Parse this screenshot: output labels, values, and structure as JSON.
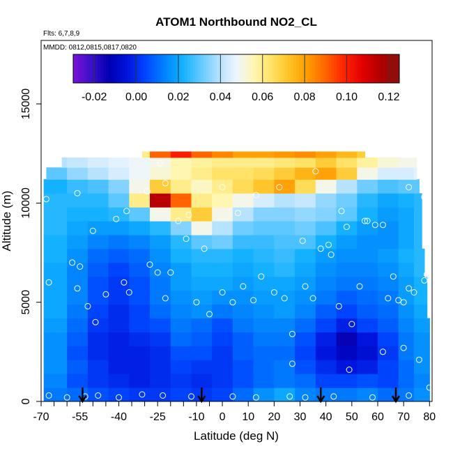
{
  "chart_data": {
    "type": "heatmap",
    "title": "ATOM1 Northbound NO2_CL",
    "subtitle_lines": [
      "Flts: 6,7,8,9",
      "MMDD: 0812,0815,0817,0820"
    ],
    "xlabel": "Latitude (deg N)",
    "ylabel": "Altitude (m)",
    "xlim": [
      -70,
      81
    ],
    "ylim": [
      0,
      18200
    ],
    "x_ticks": [
      -70,
      -55,
      -40,
      -25,
      -10,
      0,
      10,
      20,
      30,
      40,
      50,
      60,
      70,
      80
    ],
    "x_tick_labels": [
      "-70",
      "-55",
      "-40",
      "-25",
      "-10",
      "0",
      "10",
      "20",
      "30",
      "40",
      "50",
      "60",
      "70",
      "80"
    ],
    "x_minor_ticks": [
      -65,
      -60,
      -50,
      -45,
      -35,
      -30,
      -20,
      -15,
      -5
    ],
    "y_ticks": [
      0,
      5000,
      10000,
      15000
    ],
    "y_tick_labels": [
      "0",
      "5000",
      "10000",
      "15000"
    ],
    "colorbar": {
      "range": [
        -0.03,
        0.125
      ],
      "ticks": [
        -0.02,
        0.0,
        0.02,
        0.04,
        0.06,
        0.08,
        0.1,
        0.12
      ],
      "tick_labels": [
        "-0.02",
        "0.00",
        "0.02",
        "0.04",
        "0.06",
        "0.08",
        "0.10",
        "0.12"
      ],
      "colors": [
        "#7a12d6",
        "#3a10c8",
        "#0000b4",
        "#0014dc",
        "#0046ff",
        "#0080ff",
        "#10b0ff",
        "#60c8ff",
        "#b0e0ff",
        "#eef6ff",
        "#fff7b0",
        "#ffe060",
        "#ffc020",
        "#ff9800",
        "#ff6000",
        "#ff2000",
        "#e00000",
        "#b00000",
        "#8a1010"
      ]
    },
    "altitude_band_edges_m": [
      0,
      700,
      1400,
      2100,
      2800,
      3500,
      4200,
      4900,
      5600,
      6300,
      7000,
      7700,
      8400,
      9100,
      9800,
      10500,
      11200,
      11800,
      12300,
      12600
    ],
    "latitude_bin_edges": [
      -68,
      -60,
      -52,
      -44,
      -36,
      -28,
      -20,
      -12,
      -4,
      4,
      12,
      20,
      28,
      36,
      44,
      52,
      60,
      68,
      74,
      80
    ],
    "band_lat_extents": [
      [
        -69,
        80
      ],
      [
        -69,
        80
      ],
      [
        -69,
        80
      ],
      [
        -69,
        80
      ],
      [
        -69,
        80
      ],
      [
        -69,
        80
      ],
      [
        -69,
        79
      ],
      [
        -69,
        79
      ],
      [
        -69,
        79
      ],
      [
        -69,
        78
      ],
      [
        -69,
        78
      ],
      [
        -69,
        77
      ],
      [
        -69,
        77
      ],
      [
        -69,
        77
      ],
      [
        -69,
        77
      ],
      [
        -69,
        76
      ],
      [
        -68,
        75
      ],
      [
        -62,
        75
      ],
      [
        -31,
        55
      ]
    ],
    "values": [
      [
        0.012,
        0.01,
        0.006,
        0.004,
        0.002,
        0.002,
        0.004,
        0.002,
        0.004,
        0.01,
        0.016,
        0.02,
        0.014,
        0.012,
        0.012,
        0.014,
        0.01,
        0.012,
        0.016
      ],
      [
        0.014,
        0.006,
        0.002,
        0.0,
        -0.002,
        0.0,
        0.002,
        0.0,
        0.002,
        0.006,
        0.01,
        0.012,
        0.01,
        0.004,
        0.004,
        0.006,
        0.004,
        0.01,
        0.014
      ],
      [
        0.016,
        0.008,
        0.002,
        -0.002,
        -0.002,
        0.0,
        0.004,
        0.002,
        0.002,
        0.006,
        0.01,
        0.012,
        0.006,
        0.0,
        -0.004,
        -0.002,
        0.004,
        0.01,
        0.016
      ],
      [
        0.016,
        0.006,
        0.0,
        -0.002,
        -0.002,
        0.0,
        0.006,
        0.006,
        0.002,
        0.008,
        0.01,
        0.01,
        0.004,
        -0.004,
        -0.01,
        -0.006,
        0.002,
        0.012,
        0.016
      ],
      [
        0.016,
        0.008,
        0.0,
        -0.002,
        0.0,
        0.002,
        0.01,
        0.008,
        0.004,
        0.008,
        0.012,
        0.012,
        0.006,
        -0.002,
        -0.014,
        -0.004,
        0.004,
        0.012,
        0.016
      ],
      [
        0.018,
        0.01,
        0.002,
        0.0,
        0.004,
        0.006,
        0.012,
        0.01,
        0.006,
        0.012,
        0.014,
        0.014,
        0.01,
        0.004,
        -0.002,
        0.004,
        0.008,
        0.014,
        0.018
      ],
      [
        0.02,
        0.012,
        0.004,
        0.0,
        0.004,
        0.01,
        0.014,
        0.016,
        0.012,
        0.014,
        0.016,
        0.018,
        0.014,
        0.008,
        0.004,
        0.008,
        0.01,
        0.016,
        0.02
      ],
      [
        0.02,
        0.014,
        0.006,
        0.002,
        0.006,
        0.012,
        0.016,
        0.018,
        0.016,
        0.016,
        0.018,
        0.018,
        0.016,
        0.012,
        0.008,
        0.01,
        0.012,
        0.018,
        0.022
      ],
      [
        0.02,
        0.014,
        0.006,
        0.002,
        0.006,
        0.012,
        0.018,
        0.02,
        0.02,
        0.018,
        0.02,
        0.02,
        0.018,
        0.014,
        0.012,
        0.012,
        0.014,
        0.018,
        0.022
      ],
      [
        0.02,
        0.014,
        0.008,
        0.004,
        0.008,
        0.014,
        0.018,
        0.022,
        0.022,
        0.02,
        0.022,
        0.024,
        0.02,
        0.016,
        0.014,
        0.014,
        0.016,
        0.02,
        0.024
      ],
      [
        0.022,
        0.016,
        0.01,
        0.008,
        0.01,
        0.016,
        0.022,
        0.024,
        0.024,
        0.022,
        0.024,
        0.026,
        0.022,
        0.018,
        0.016,
        0.016,
        0.018,
        0.022,
        0.024
      ],
      [
        0.022,
        0.018,
        0.014,
        0.012,
        0.014,
        0.018,
        0.024,
        0.03,
        0.032,
        0.026,
        0.026,
        0.028,
        0.028,
        0.022,
        0.018,
        0.016,
        0.016,
        0.02,
        0.024
      ],
      [
        0.024,
        0.02,
        0.018,
        0.018,
        0.02,
        0.024,
        0.034,
        0.05,
        0.04,
        0.032,
        0.03,
        0.03,
        0.032,
        0.028,
        0.022,
        0.018,
        0.016,
        0.02,
        0.024
      ],
      [
        0.024,
        0.022,
        0.022,
        0.024,
        0.03,
        0.05,
        0.06,
        0.07,
        0.05,
        0.04,
        0.034,
        0.034,
        0.036,
        0.034,
        0.03,
        0.022,
        0.018,
        0.02,
        0.024
      ],
      [
        0.024,
        0.024,
        0.024,
        0.03,
        0.06,
        0.115,
        0.09,
        0.06,
        0.056,
        0.05,
        0.044,
        0.04,
        0.042,
        0.036,
        0.032,
        0.024,
        0.02,
        0.022,
        0.024
      ],
      [
        0.022,
        0.026,
        0.028,
        0.034,
        0.05,
        0.07,
        0.06,
        0.054,
        0.06,
        0.066,
        0.072,
        0.08,
        0.066,
        0.05,
        0.04,
        0.032,
        0.028,
        0.03,
        0.03
      ],
      [
        0.03,
        0.036,
        0.04,
        0.044,
        0.048,
        0.052,
        0.056,
        0.06,
        0.064,
        0.064,
        0.066,
        0.07,
        0.076,
        0.08,
        0.07,
        0.05,
        0.044,
        0.044,
        0.046
      ],
      [
        0.04,
        0.042,
        0.044,
        0.046,
        0.048,
        0.05,
        0.056,
        0.058,
        0.06,
        0.06,
        0.06,
        0.062,
        0.064,
        0.07,
        0.064,
        0.058,
        0.052,
        0.05,
        0.05
      ],
      [
        0.06,
        0.06,
        0.06,
        0.06,
        0.06,
        0.09,
        0.1,
        0.09,
        0.085,
        0.08,
        0.08,
        0.082,
        0.084,
        0.08,
        0.075,
        0.07,
        0.07,
        0.06,
        0.06
      ]
    ],
    "sample_points": [
      {
        "lat": -67,
        "alt": 300
      },
      {
        "lat": -60,
        "alt": 200
      },
      {
        "lat": -53,
        "alt": 250
      },
      {
        "lat": -48,
        "alt": 300
      },
      {
        "lat": -40,
        "alt": 200
      },
      {
        "lat": -31,
        "alt": 350
      },
      {
        "lat": -23,
        "alt": 300
      },
      {
        "lat": -12,
        "alt": 250
      },
      {
        "lat": 4,
        "alt": 250
      },
      {
        "lat": 13,
        "alt": 200
      },
      {
        "lat": 26,
        "alt": 250
      },
      {
        "lat": 32,
        "alt": 200
      },
      {
        "lat": 43,
        "alt": 250
      },
      {
        "lat": 58,
        "alt": 200
      },
      {
        "lat": 72,
        "alt": 300
      },
      {
        "lat": 80,
        "alt": 700
      },
      {
        "lat": -67,
        "alt": 6000
      },
      {
        "lat": -58,
        "alt": 7000
      },
      {
        "lat": -56,
        "alt": 5700
      },
      {
        "lat": -55,
        "alt": 6800
      },
      {
        "lat": -52,
        "alt": 4800
      },
      {
        "lat": -49,
        "alt": 4000
      },
      {
        "lat": -45,
        "alt": 5400
      },
      {
        "lat": -38,
        "alt": 6000
      },
      {
        "lat": -36,
        "alt": 5500
      },
      {
        "lat": -28,
        "alt": 6900
      },
      {
        "lat": -25,
        "alt": 6500
      },
      {
        "lat": -22,
        "alt": 5200
      },
      {
        "lat": -20,
        "alt": 6500
      },
      {
        "lat": -17,
        "alt": 9100
      },
      {
        "lat": -14,
        "alt": 8200
      },
      {
        "lat": -10,
        "alt": 5000
      },
      {
        "lat": -5,
        "alt": 4400
      },
      {
        "lat": 0,
        "alt": 5500
      },
      {
        "lat": 4,
        "alt": 5000
      },
      {
        "lat": 8,
        "alt": 5800
      },
      {
        "lat": 12,
        "alt": 5100
      },
      {
        "lat": 15,
        "alt": 6300
      },
      {
        "lat": 20,
        "alt": 5500
      },
      {
        "lat": 24,
        "alt": 5200
      },
      {
        "lat": 27,
        "alt": 3400
      },
      {
        "lat": 32,
        "alt": 5800
      },
      {
        "lat": 35,
        "alt": 5200
      },
      {
        "lat": 38,
        "alt": 7700
      },
      {
        "lat": 42,
        "alt": 7400
      },
      {
        "lat": 45,
        "alt": 4800
      },
      {
        "lat": 48,
        "alt": 8800
      },
      {
        "lat": 50,
        "alt": 3900
      },
      {
        "lat": 53,
        "alt": 5800
      },
      {
        "lat": 55,
        "alt": 9100
      },
      {
        "lat": 62,
        "alt": 8900
      },
      {
        "lat": 64,
        "alt": 5200
      },
      {
        "lat": 66,
        "alt": 6300
      },
      {
        "lat": 68,
        "alt": 5100
      },
      {
        "lat": 70,
        "alt": 2700
      },
      {
        "lat": 72,
        "alt": 5700
      },
      {
        "lat": 74,
        "alt": 5500
      },
      {
        "lat": 76,
        "alt": 2100
      },
      {
        "lat": 78,
        "alt": 6100
      },
      {
        "lat": 79,
        "alt": 6400
      },
      {
        "lat": -68,
        "alt": 10200
      },
      {
        "lat": -56,
        "alt": 10500
      },
      {
        "lat": -50,
        "alt": 8600
      },
      {
        "lat": -41,
        "alt": 9200
      },
      {
        "lat": -37,
        "alt": 9600
      },
      {
        "lat": -29,
        "alt": 10600
      },
      {
        "lat": -22,
        "alt": 11000
      },
      {
        "lat": -13,
        "alt": 9400
      },
      {
        "lat": -7,
        "alt": 7700
      },
      {
        "lat": 0,
        "alt": 10800
      },
      {
        "lat": 6,
        "alt": 9500
      },
      {
        "lat": 13,
        "alt": 10400
      },
      {
        "lat": 22,
        "alt": 10800
      },
      {
        "lat": 31,
        "alt": 8100
      },
      {
        "lat": 36,
        "alt": 11600
      },
      {
        "lat": 41,
        "alt": 7900
      },
      {
        "lat": 46,
        "alt": 9600
      },
      {
        "lat": 56,
        "alt": 9100
      },
      {
        "lat": 59,
        "alt": 8900
      },
      {
        "lat": 72,
        "alt": 10800
      },
      {
        "lat": 78,
        "alt": 10300
      },
      {
        "lat": -24,
        "alt": 12000
      },
      {
        "lat": 70,
        "alt": 5000
      },
      {
        "lat": 62,
        "alt": 2500
      },
      {
        "lat": 49,
        "alt": 1600
      },
      {
        "lat": 27,
        "alt": 1900
      }
    ],
    "arrow_markers_lat": [
      -54,
      -8,
      38,
      67
    ],
    "legend": "colorbar-top-inside"
  }
}
